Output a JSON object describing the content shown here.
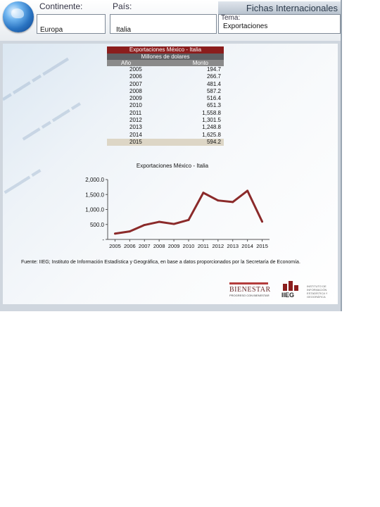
{
  "header": {
    "app_title": "Fichas Internacionales",
    "continent_label": "Continente:",
    "continent_value": "Europa",
    "country_label": "País:",
    "country_value": "Italia",
    "topic_label": "Tema:",
    "topic_value": "Exportaciones"
  },
  "table": {
    "title": "Exportaciones México - Italia",
    "subtitle": "Millones de dolares",
    "col_year": "Año",
    "col_amount": "Monto",
    "rows": [
      {
        "year": "2005",
        "amount": "194.7"
      },
      {
        "year": "2006",
        "amount": "266.7"
      },
      {
        "year": "2007",
        "amount": "481.4"
      },
      {
        "year": "2008",
        "amount": "587.2"
      },
      {
        "year": "2009",
        "amount": "516.4"
      },
      {
        "year": "2010",
        "amount": "651.3"
      },
      {
        "year": "2011",
        "amount": "1,558.8"
      },
      {
        "year": "2012",
        "amount": "1,301.5"
      },
      {
        "year": "2013",
        "amount": "1,248.8"
      },
      {
        "year": "2014",
        "amount": "1,625.8"
      },
      {
        "year": "2015",
        "amount": "594.2"
      }
    ]
  },
  "chart_data": {
    "type": "line",
    "title": "Exportaciones México - Italia",
    "categories": [
      "2005",
      "2006",
      "2007",
      "2008",
      "2009",
      "2010",
      "2011",
      "2012",
      "2013",
      "2014",
      "2015"
    ],
    "series": [
      {
        "values": [
          194.7,
          266.7,
          481.4,
          587.2,
          516.4,
          651.3,
          1558.8,
          1301.5,
          1248.8,
          1625.8,
          594.2
        ]
      }
    ],
    "ylim": [
      0,
      2000
    ],
    "yticks": [
      "-",
      "500.0",
      "1,000.0",
      "1,500.0",
      "2,000.0"
    ],
    "line_color": "#8b2a2a",
    "grid": false
  },
  "source": "Fuente: IIEG; Instituto de Información Estadística y Geográfica, en base a datos proporcionados por la Secretaría de Economía.",
  "logos": {
    "logo1_text": "BIENESTAR",
    "logo1_small": "PROGRESO CON BIENESTAR",
    "logo2_text": "IIEG",
    "logo3_text": "INSTITUTO DE INFORMACIÓN ESTADÍSTICA Y GEOGRÁFICA"
  }
}
